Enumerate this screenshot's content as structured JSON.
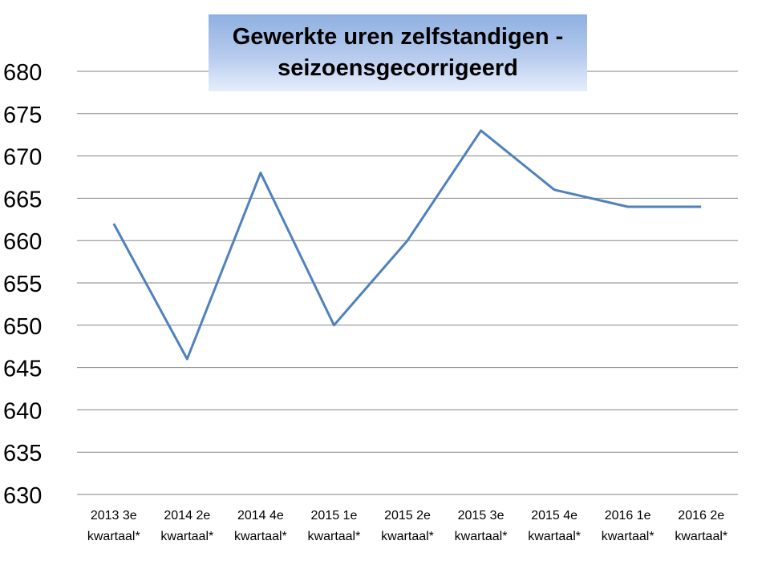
{
  "chart_data": {
    "type": "line",
    "title_lines": [
      "Gewerkte uren zelfstandigen -",
      "seizoensgecorrigeerd"
    ],
    "categories": [
      [
        "2013 3e",
        "kwartaal*"
      ],
      [
        "2014 2e",
        "kwartaal*"
      ],
      [
        "2014 4e",
        "kwartaal*"
      ],
      [
        "2015 1e",
        "kwartaal*"
      ],
      [
        "2015 2e",
        "kwartaal*"
      ],
      [
        "2015 3e",
        "kwartaal*"
      ],
      [
        "2015 4e",
        "kwartaal*"
      ],
      [
        "2016 1e",
        "kwartaal*"
      ],
      [
        "2016 2e",
        "kwartaal*"
      ]
    ],
    "series": [
      {
        "values": [
          662,
          646,
          668,
          650,
          660,
          673,
          666,
          664,
          664
        ]
      }
    ],
    "ylim": [
      630,
      680
    ],
    "yticks": [
      "630",
      "635",
      "640",
      "645",
      "650",
      "655",
      "660",
      "665",
      "670",
      "675",
      "680"
    ],
    "xlabel": "",
    "ylabel": "",
    "grid": true,
    "line_color": "#4f81bd",
    "grid_color": "#868686",
    "title_gradient_top": "#8fb0e0",
    "title_gradient_bottom": "#e6eefb"
  }
}
